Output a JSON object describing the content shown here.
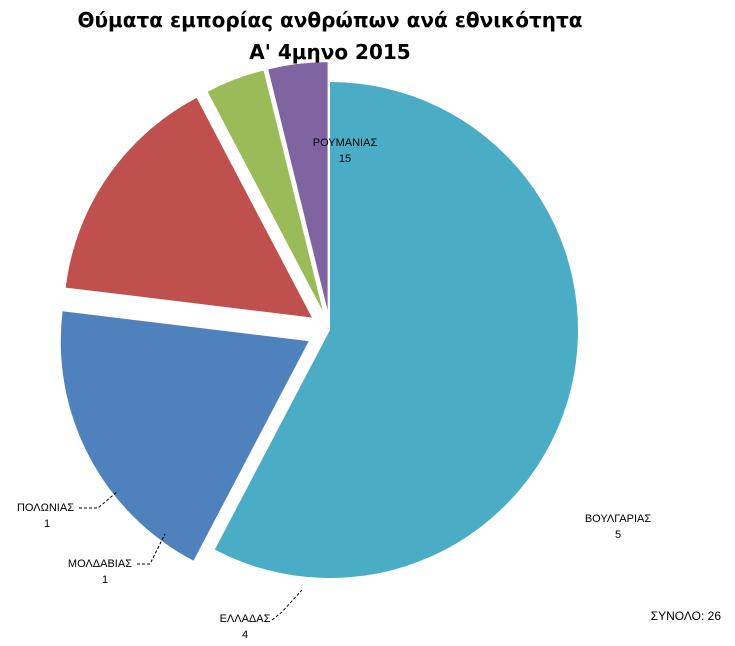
{
  "chart_data": {
    "type": "pie",
    "title": "Θύματα εμπορίας ανθρώπων ανά εθνικότητα",
    "subtitle": "Α' 4μηνο 2015",
    "exploded": true,
    "slices": [
      {
        "label": "ΡΟΥΜΑΝΙΑΣ",
        "value": 15,
        "color": "#4BACC6"
      },
      {
        "label": "ΒΟΥΛΓΑΡΙΑΣ",
        "value": 5,
        "color": "#4F81BD"
      },
      {
        "label": "ΕΛΛΑΔΑΣ",
        "value": 4,
        "color": "#C0504D"
      },
      {
        "label": "ΜΟΛΔΑΒΙΑΣ",
        "value": 1,
        "color": "#9BBB59"
      },
      {
        "label": "ΠΟΛΩΝΙΑΣ",
        "value": 1,
        "color": "#8064A2"
      }
    ],
    "total_label": "ΣΥΝΟΛΟ: 26"
  }
}
